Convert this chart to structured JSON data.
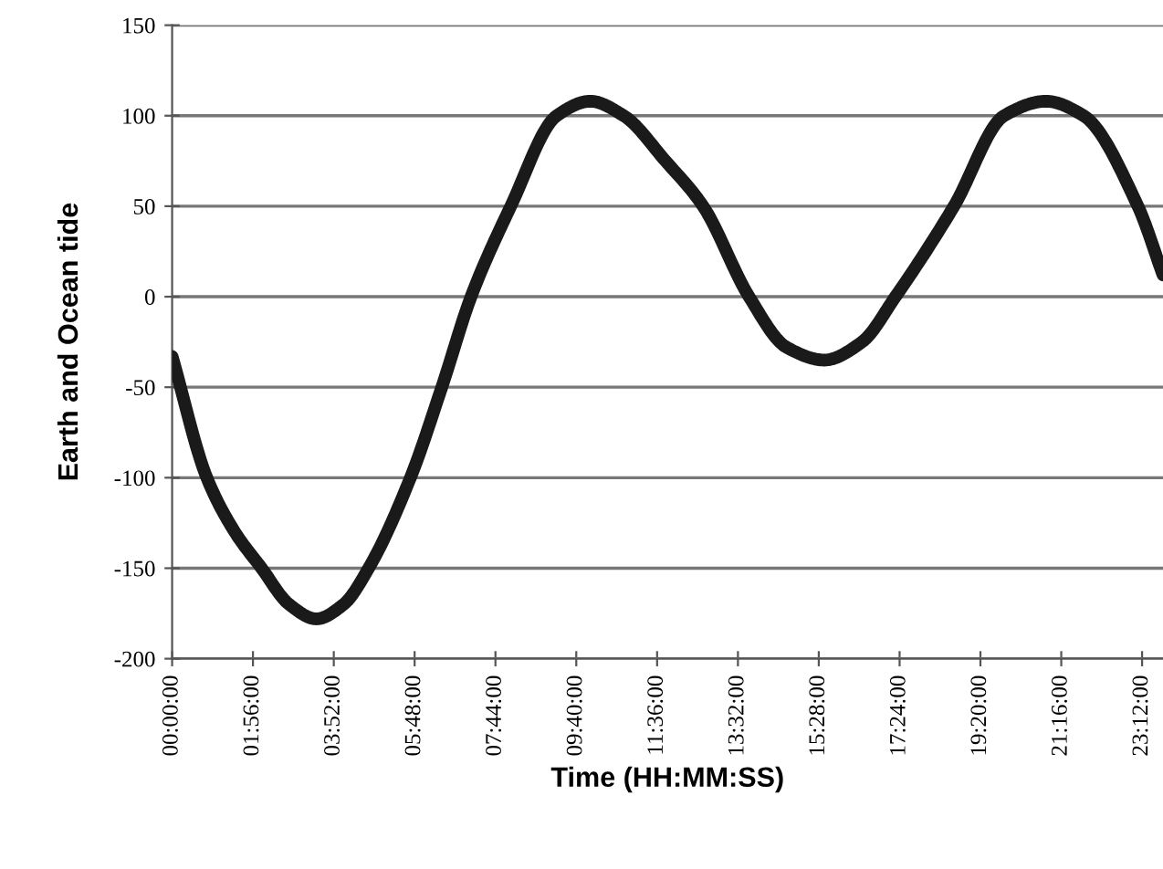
{
  "chart_data": {
    "type": "line",
    "xlabel": "Time (HH:MM:SS)",
    "ylabel": "Earth and Ocean tide",
    "x": [
      0,
      0.83,
      1.5,
      2.14,
      2.8,
      3.45,
      4.1,
      4.7,
      5.7,
      6.45,
      7.15,
      8.1,
      9.2,
      10.0,
      10.8,
      11.8,
      12.7,
      13.8,
      14.7,
      15.6,
      16.5,
      17.3,
      18.7,
      19.9,
      20.9,
      21.8,
      23.1,
      23.7
    ],
    "series": [
      {
        "color": "#1a1a1a",
        "values": [
          -33,
          -100,
          -130,
          -150,
          -170,
          -178,
          -170,
          -150,
          -100,
          -50,
          0,
          50,
          100,
          108,
          100,
          75,
          50,
          0,
          -28,
          -35,
          -25,
          0,
          50,
          100,
          108,
          100,
          50,
          12
        ]
      }
    ],
    "xlim": [
      0,
      23.7
    ],
    "ylim": [
      -200,
      150
    ],
    "xticks": [
      {
        "value": 0,
        "label": "00:00:00"
      },
      {
        "value": 1.9333,
        "label": "01:56:00"
      },
      {
        "value": 3.8667,
        "label": "03:52:00"
      },
      {
        "value": 5.8,
        "label": "05:48:00"
      },
      {
        "value": 7.7333,
        "label": "07:44:00"
      },
      {
        "value": 9.6667,
        "label": "09:40:00"
      },
      {
        "value": 11.6,
        "label": "11:36:00"
      },
      {
        "value": 13.5333,
        "label": "13:32:00"
      },
      {
        "value": 15.4667,
        "label": "15:28:00"
      },
      {
        "value": 17.4,
        "label": "17:24:00"
      },
      {
        "value": 19.3333,
        "label": "19:20:00"
      },
      {
        "value": 21.2667,
        "label": "21:16:00"
      },
      {
        "value": 23.2,
        "label": "23:12:00"
      }
    ],
    "yticks": [
      -200,
      -150,
      -100,
      -50,
      0,
      50,
      100,
      150
    ],
    "grid": "y",
    "marker": "none",
    "line_style": "solid"
  }
}
